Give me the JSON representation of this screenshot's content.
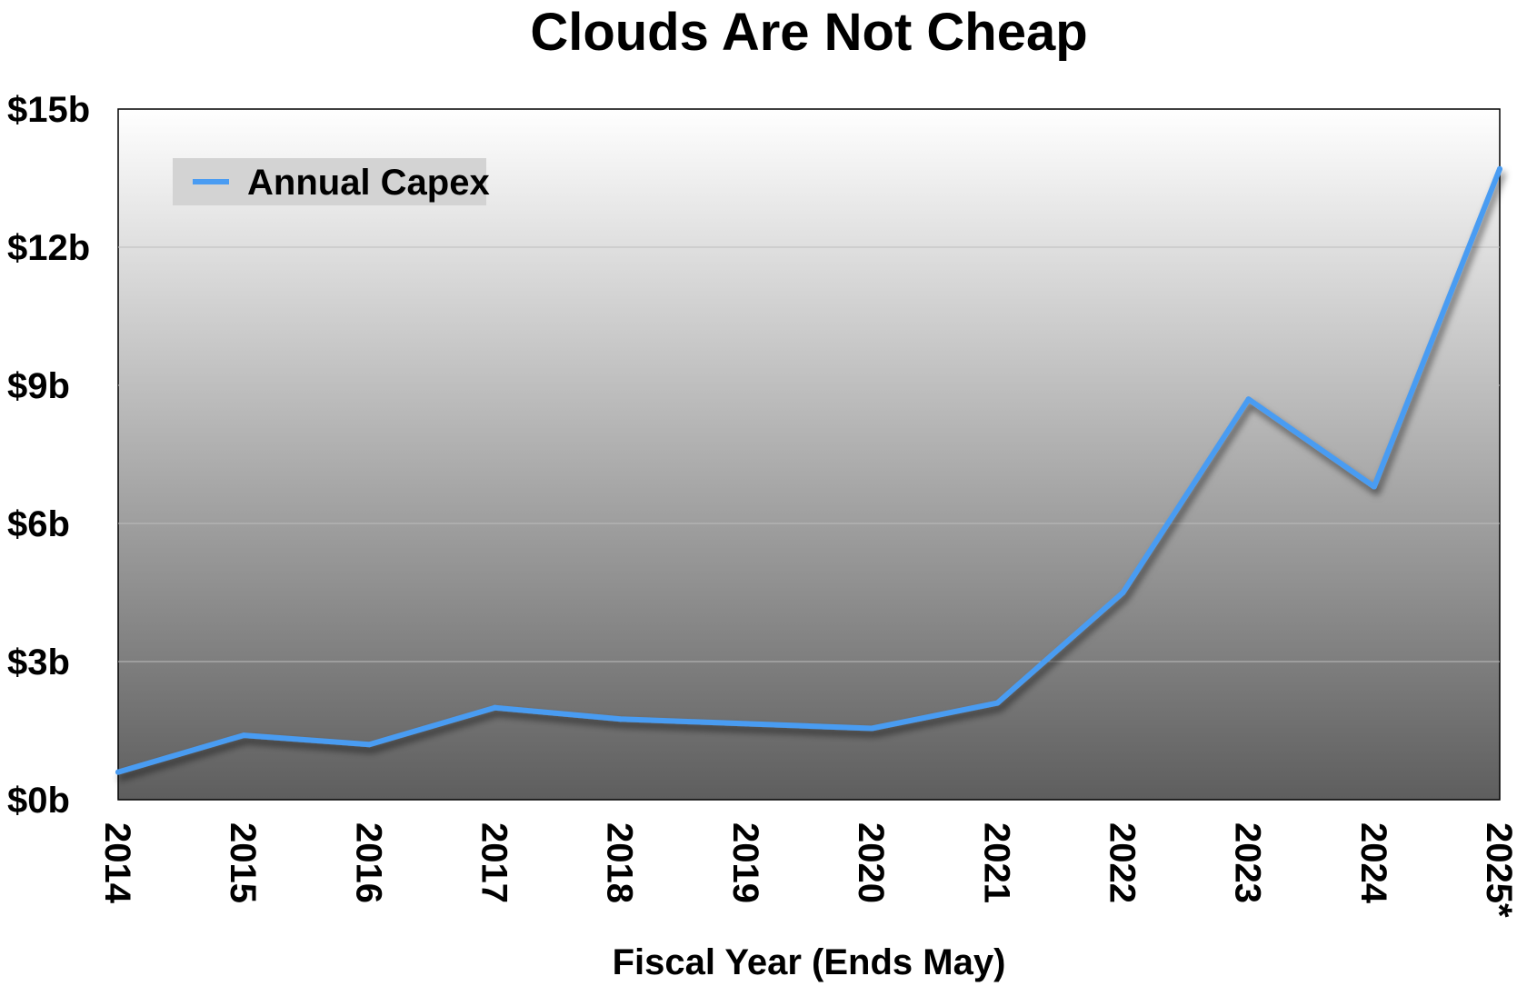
{
  "chart_data": {
    "type": "line",
    "title": "Clouds Are Not Cheap",
    "xlabel": "Fiscal Year (Ends May)",
    "ylabel": "",
    "categories": [
      "2014",
      "2015",
      "2016",
      "2017",
      "2018",
      "2019",
      "2020",
      "2021",
      "2022",
      "2023",
      "2024",
      "2025*"
    ],
    "y_tick_labels": [
      "$0b",
      "$3b",
      "$6b",
      "$9b",
      "$12b",
      "$15b"
    ],
    "y_ticks": [
      0,
      3,
      6,
      9,
      12,
      15
    ],
    "ylim": [
      0,
      15
    ],
    "grid": true,
    "legend_position": "top-left",
    "series": [
      {
        "name": "Annual Capex",
        "color": "#4a9cf2",
        "values": [
          0.6,
          1.4,
          1.2,
          2.0,
          1.75,
          1.65,
          1.55,
          2.1,
          4.5,
          8.7,
          6.8,
          13.7
        ]
      }
    ]
  }
}
